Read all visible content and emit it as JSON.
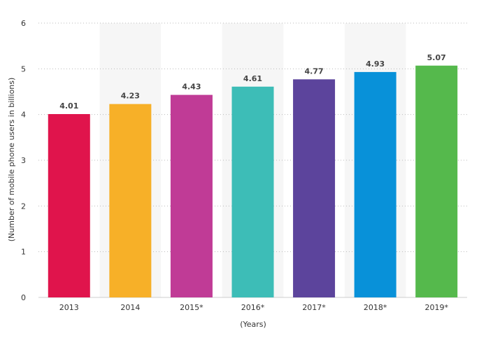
{
  "chart_data": {
    "type": "bar",
    "categories": [
      "2013",
      "2014",
      "2015*",
      "2016*",
      "2017*",
      "2018*",
      "2019*"
    ],
    "values": [
      4.01,
      4.23,
      4.43,
      4.61,
      4.77,
      4.93,
      5.07
    ],
    "data_labels": [
      "4.01",
      "4.23",
      "4.43",
      "4.61",
      "4.77",
      "4.93",
      "5.07"
    ],
    "bar_colors": [
      "#e0144c",
      "#f7b028",
      "#c03b96",
      "#3dbdb7",
      "#5c449c",
      "#0891d9",
      "#55b94c"
    ],
    "title": "",
    "xlabel": "(Years)",
    "ylabel": "(Number of mobile phone users in billions)",
    "ylim": [
      0,
      6
    ],
    "yticks": [
      "0",
      "1",
      "2",
      "3",
      "4",
      "5",
      "6"
    ],
    "grid": true,
    "grid_style": "dotted",
    "alternating_column_shading": "#f6f6f6"
  }
}
